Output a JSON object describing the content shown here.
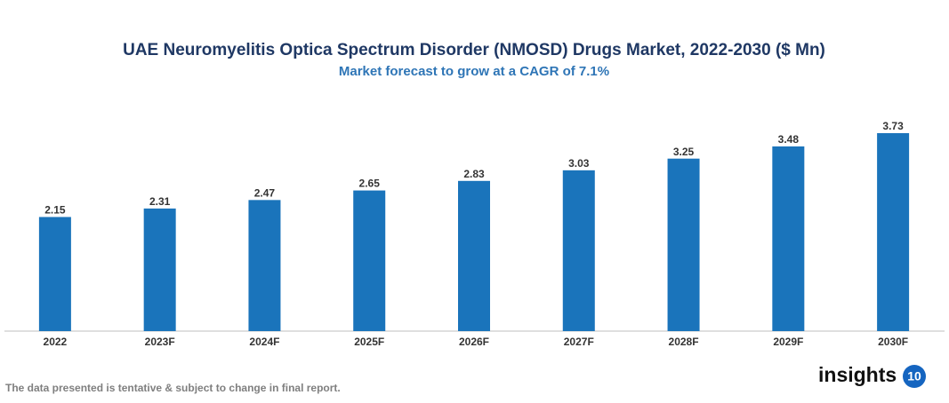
{
  "chart_data": {
    "type": "bar",
    "title": "UAE Neuromyelitis Optica Spectrum Disorder (NMOSD) Drugs Market, 2022-2030 ($ Mn)",
    "subtitle": "Market forecast to grow at a CAGR of 7.1%",
    "categories": [
      "2022",
      "2023F",
      "2024F",
      "2025F",
      "2026F",
      "2027F",
      "2028F",
      "2029F",
      "2030F"
    ],
    "values": [
      2.15,
      2.31,
      2.47,
      2.65,
      2.83,
      3.03,
      3.25,
      3.48,
      3.73
    ],
    "color": "#1a74bb"
  },
  "footnote": "The data presented is tentative & subject to change in final report.",
  "logo": {
    "text": "insights",
    "badge": "10"
  }
}
